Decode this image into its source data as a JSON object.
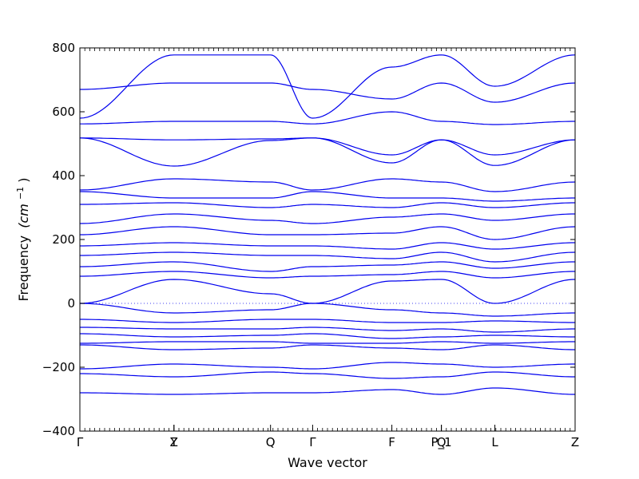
{
  "chart_data": {
    "type": "line",
    "xlabel": "Wave vector",
    "ylabel": "Frequency",
    "ylabel_unit": "(cm",
    "ylabel_exp": "−1",
    "ylabel_close": ")",
    "ylim": [
      -400,
      800
    ],
    "yticks": [
      800,
      600,
      400,
      200,
      0,
      -200,
      -400
    ],
    "ytick_labels": [
      "800",
      "600",
      "400",
      "200",
      "0",
      "−200",
      "−400"
    ],
    "x_segments": [
      {
        "label": "Γ",
        "x": 0.0
      },
      {
        "label": "Y",
        "x": 0.19
      },
      {
        "label": "Z",
        "x": 0.19
      },
      {
        "label": "Q",
        "x": 0.385
      },
      {
        "label": "Γ",
        "x": 0.47
      },
      {
        "label": "F",
        "x": 0.63
      },
      {
        "label": "P_1",
        "x": 0.73
      },
      {
        "label": "Q",
        "x": 0.73
      },
      {
        "label": "L",
        "x": 0.838
      },
      {
        "label": "Z",
        "x": 1.0
      }
    ],
    "series": [
      {
        "name": "",
        "x": [
          0,
          0.19,
          0.385,
          0.47,
          0.63,
          0.73,
          0.838,
          1.0
        ],
        "values": [
          580,
          778,
          778,
          580,
          740,
          778,
          680,
          778
        ]
      },
      {
        "name": "",
        "x": [
          0,
          0.19,
          0.385,
          0.47,
          0.63,
          0.73,
          0.838,
          1.0
        ],
        "values": [
          670,
          690,
          690,
          670,
          640,
          690,
          630,
          690
        ]
      },
      {
        "name": "",
        "x": [
          0,
          0.19,
          0.385,
          0.47,
          0.63,
          0.73,
          0.838,
          1.0
        ],
        "values": [
          562,
          570,
          570,
          562,
          600,
          570,
          560,
          570
        ]
      },
      {
        "name": "",
        "x": [
          0,
          0.19,
          0.385,
          0.47,
          0.63,
          0.73,
          0.838,
          1.0
        ],
        "values": [
          518,
          512,
          515,
          518,
          465,
          512,
          432,
          512
        ]
      },
      {
        "name": "",
        "x": [
          0,
          0.19,
          0.385,
          0.47,
          0.63,
          0.73,
          0.838,
          1.0
        ],
        "values": [
          518,
          430,
          510,
          518,
          440,
          512,
          465,
          512
        ]
      },
      {
        "name": "",
        "x": [
          0,
          0.19,
          0.385,
          0.47,
          0.63,
          0.73,
          0.838,
          1.0
        ],
        "values": [
          355,
          390,
          380,
          355,
          390,
          380,
          350,
          380
        ]
      },
      {
        "name": "",
        "x": [
          0,
          0.19,
          0.385,
          0.47,
          0.63,
          0.73,
          0.838,
          1.0
        ],
        "values": [
          350,
          330,
          330,
          350,
          330,
          330,
          320,
          330
        ]
      },
      {
        "name": "",
        "x": [
          0,
          0.19,
          0.385,
          0.47,
          0.63,
          0.73,
          0.838,
          1.0
        ],
        "values": [
          310,
          315,
          300,
          310,
          300,
          315,
          300,
          315
        ]
      },
      {
        "name": "",
        "x": [
          0,
          0.19,
          0.385,
          0.47,
          0.63,
          0.73,
          0.838,
          1.0
        ],
        "values": [
          250,
          280,
          260,
          250,
          270,
          280,
          260,
          280
        ]
      },
      {
        "name": "",
        "x": [
          0,
          0.19,
          0.385,
          0.47,
          0.63,
          0.73,
          0.838,
          1.0
        ],
        "values": [
          215,
          240,
          215,
          215,
          220,
          240,
          200,
          240
        ]
      },
      {
        "name": "",
        "x": [
          0,
          0.19,
          0.385,
          0.47,
          0.63,
          0.73,
          0.838,
          1.0
        ],
        "values": [
          180,
          190,
          180,
          180,
          170,
          190,
          170,
          190
        ]
      },
      {
        "name": "",
        "x": [
          0,
          0.19,
          0.385,
          0.47,
          0.63,
          0.73,
          0.838,
          1.0
        ],
        "values": [
          150,
          160,
          150,
          150,
          140,
          160,
          130,
          160
        ]
      },
      {
        "name": "",
        "x": [
          0,
          0.19,
          0.385,
          0.47,
          0.63,
          0.73,
          0.838,
          1.0
        ],
        "values": [
          115,
          130,
          100,
          115,
          120,
          130,
          110,
          130
        ]
      },
      {
        "name": "",
        "x": [
          0,
          0.19,
          0.385,
          0.47,
          0.63,
          0.73,
          0.838,
          1.0
        ],
        "values": [
          85,
          100,
          80,
          85,
          90,
          100,
          80,
          100
        ]
      },
      {
        "name": "",
        "x": [
          0,
          0.19,
          0.385,
          0.47,
          0.63,
          0.73,
          0.838,
          1.0
        ],
        "values": [
          0,
          75,
          30,
          0,
          70,
          75,
          0,
          75
        ]
      },
      {
        "name": "",
        "x": [
          0,
          0.19,
          0.385,
          0.47,
          0.63,
          0.73,
          0.838,
          1.0
        ],
        "values": [
          0,
          -30,
          -20,
          0,
          -20,
          -30,
          -40,
          -30
        ]
      },
      {
        "name": "",
        "x": [
          0,
          0.19,
          0.385,
          0.47,
          0.63,
          0.73,
          0.838,
          1.0
        ],
        "values": [
          -50,
          -60,
          -50,
          -50,
          -60,
          -60,
          -55,
          -60
        ]
      },
      {
        "name": "",
        "x": [
          0,
          0.19,
          0.385,
          0.47,
          0.63,
          0.73,
          0.838,
          1.0
        ],
        "values": [
          -75,
          -80,
          -80,
          -75,
          -85,
          -80,
          -90,
          -80
        ]
      },
      {
        "name": "",
        "x": [
          0,
          0.19,
          0.385,
          0.47,
          0.63,
          0.73,
          0.838,
          1.0
        ],
        "values": [
          -95,
          -105,
          -100,
          -95,
          -110,
          -105,
          -100,
          -105
        ]
      },
      {
        "name": "",
        "x": [
          0,
          0.19,
          0.385,
          0.47,
          0.63,
          0.73,
          0.838,
          1.0
        ],
        "values": [
          -125,
          -120,
          -120,
          -125,
          -125,
          -120,
          -125,
          -120
        ]
      },
      {
        "name": "",
        "x": [
          0,
          0.19,
          0.385,
          0.47,
          0.63,
          0.73,
          0.838,
          1.0
        ],
        "values": [
          -130,
          -145,
          -140,
          -130,
          -140,
          -145,
          -130,
          -145
        ]
      },
      {
        "name": "",
        "x": [
          0,
          0.19,
          0.385,
          0.47,
          0.63,
          0.73,
          0.838,
          1.0
        ],
        "values": [
          -205,
          -190,
          -200,
          -205,
          -185,
          -190,
          -200,
          -190
        ]
      },
      {
        "name": "",
        "x": [
          0,
          0.19,
          0.385,
          0.47,
          0.63,
          0.73,
          0.838,
          1.0
        ],
        "values": [
          -220,
          -230,
          -215,
          -220,
          -235,
          -230,
          -215,
          -230
        ]
      },
      {
        "name": "",
        "x": [
          0,
          0.19,
          0.385,
          0.47,
          0.63,
          0.73,
          0.838,
          1.0
        ],
        "values": [
          -280,
          -285,
          -280,
          -280,
          -270,
          -285,
          -265,
          -285
        ]
      }
    ],
    "zero_line": true,
    "grid": false,
    "line_color": "#0000ee"
  }
}
